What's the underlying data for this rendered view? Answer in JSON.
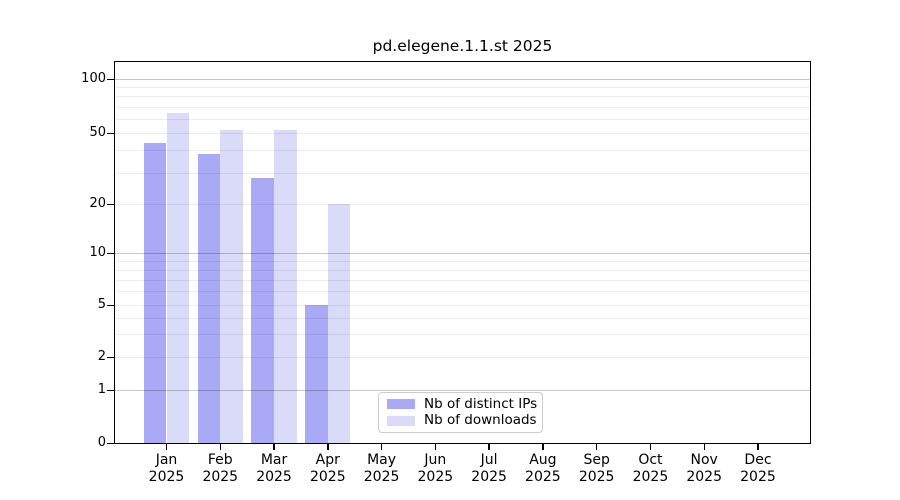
{
  "chart_data": {
    "type": "bar",
    "title": "pd.elegene.1.1.st 2025",
    "categories": [
      "Jan",
      "Feb",
      "Mar",
      "Apr",
      "May",
      "Jun",
      "Jul",
      "Aug",
      "Sep",
      "Oct",
      "Nov",
      "Dec"
    ],
    "year_label": "2025",
    "series": [
      {
        "name": "Nb of distinct IPs",
        "color": "#a9a9f5",
        "values": [
          44,
          38,
          28,
          5,
          0,
          0,
          0,
          0,
          0,
          0,
          0,
          0
        ]
      },
      {
        "name": "Nb of downloads",
        "color": "#dadaf9",
        "values": [
          65,
          52,
          52,
          20,
          0,
          0,
          0,
          0,
          0,
          0,
          0,
          0
        ]
      }
    ],
    "y_axis": {
      "tick_labels": [
        "0",
        "1",
        "2",
        "5",
        "10",
        "20",
        "50",
        "100"
      ],
      "tick_values": [
        0,
        1,
        2,
        5,
        10,
        20,
        50,
        100
      ],
      "scale": "log-like with 0 baseline",
      "range": [
        0,
        130
      ]
    },
    "x_axis": {
      "tick_labels_line1": [
        "Jan",
        "Feb",
        "Mar",
        "Apr",
        "May",
        "Jun",
        "Jul",
        "Aug",
        "Sep",
        "Oct",
        "Nov",
        "Dec"
      ],
      "tick_labels_line2": [
        "2025",
        "2025",
        "2025",
        "2025",
        "2025",
        "2025",
        "2025",
        "2025",
        "2025",
        "2025",
        "2025",
        "2025"
      ]
    },
    "grid": {
      "major_values": [
        1,
        10,
        100
      ],
      "minor_values": [
        2,
        3,
        4,
        5,
        6,
        7,
        8,
        9,
        20,
        30,
        40,
        50,
        60,
        70,
        80,
        90
      ],
      "grid_on": true
    },
    "legend": {
      "position": "bottom-center",
      "items": [
        "Nb of distinct IPs",
        "Nb of downloads"
      ]
    },
    "colors": {
      "background": "#ffffff",
      "spine": "#000000",
      "major_grid": "#c6c6c6",
      "minor_grid": "#ededed"
    }
  }
}
